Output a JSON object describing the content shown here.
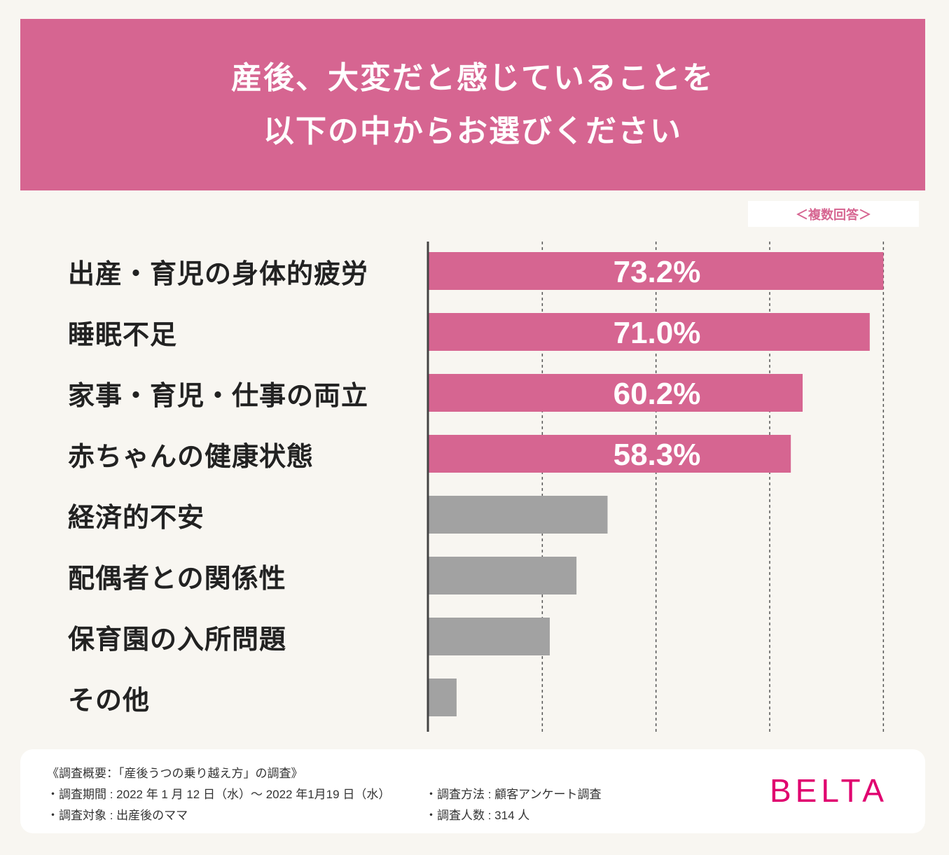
{
  "header": {
    "title_line1": "産後、大変だと感じていることを",
    "title_line2": "以下の中からお選びください"
  },
  "note": "＜複数回答＞",
  "chart_data": {
    "type": "bar",
    "orientation": "horizontal",
    "categories": [
      "出産・育児の身体的疲労",
      "睡眠不足",
      "家事・育児・仕事の両立",
      "赤ちゃんの健康状態",
      "経済的不安",
      "配偶者との関係性",
      "保育園の入所問題",
      "その他"
    ],
    "values": [
      73.2,
      71.0,
      60.2,
      58.3,
      28.8,
      23.8,
      19.5,
      4.5
    ],
    "data_labels": [
      "73.2%",
      "71.0%",
      "60.2%",
      "58.3%",
      "",
      "",
      "",
      ""
    ],
    "highlight_count": 4,
    "xlim": [
      0,
      73.5
    ],
    "gridlines": [
      18.3,
      36.6,
      54.9,
      73.2
    ],
    "colors": {
      "highlight": "#d66591",
      "other": "#a2a2a2",
      "axis": "#444444"
    }
  },
  "footer": {
    "summary": "《調査概要：「産後うつの乗り越え方」の調査》",
    "period": "・調査期間 : 2022 年 1 月 12 日（水）～ 2022 年1月19 日（水）",
    "target": "・調査対象 : 出産後のママ",
    "method": "・調査方法 : 顧客アンケート調査",
    "count": "・調査人数 : 314 人",
    "brand": "BELTA"
  }
}
